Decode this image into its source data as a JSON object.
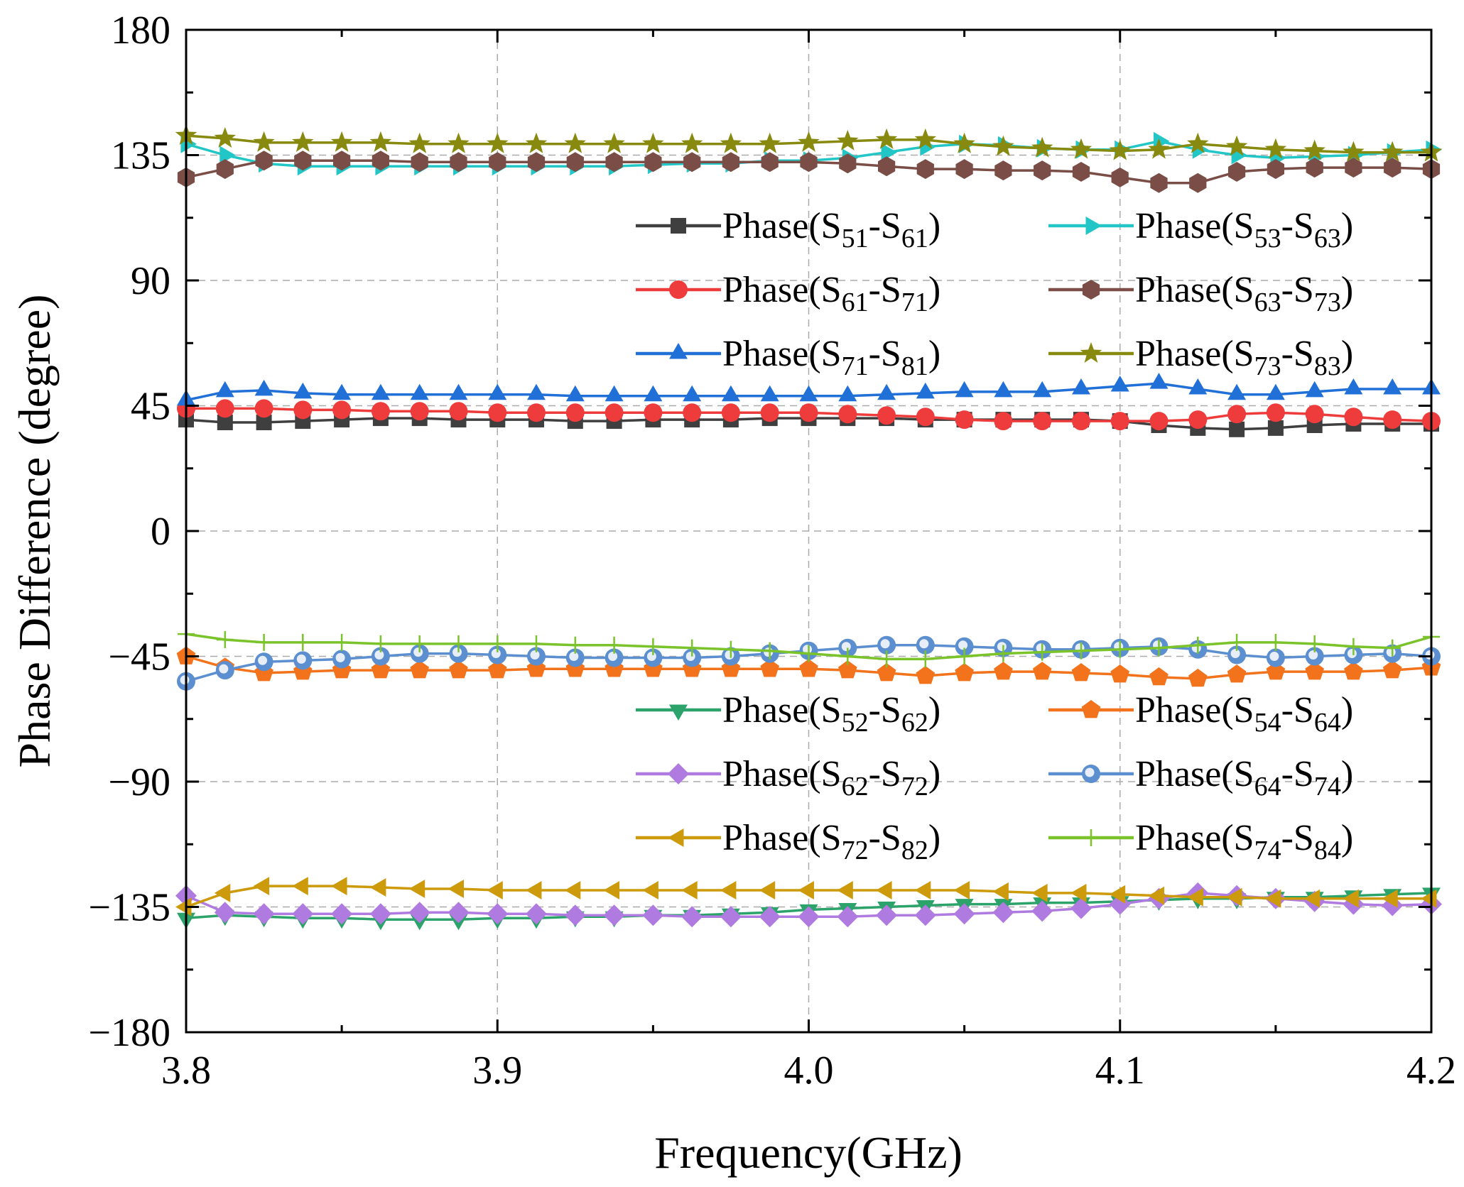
{
  "chart_data": {
    "type": "line",
    "title": "",
    "xlabel": "Frequency(GHz)",
    "ylabel": "Phase Difference (degree)",
    "xlim": [
      3.8,
      4.2
    ],
    "ylim": [
      -180,
      180
    ],
    "grid": true,
    "x_ticks": [
      {
        "value": 3.8,
        "label": "3.8"
      },
      {
        "value": 3.9,
        "label": "3.9"
      },
      {
        "value": 4.0,
        "label": "4.0"
      },
      {
        "value": 4.1,
        "label": "4.1"
      },
      {
        "value": 4.2,
        "label": "4.2"
      }
    ],
    "y_ticks": [
      {
        "value": 180,
        "label": "180"
      },
      {
        "value": 135,
        "label": "135"
      },
      {
        "value": 90,
        "label": "90"
      },
      {
        "value": 45,
        "label": "45"
      },
      {
        "value": 0,
        "label": "0"
      },
      {
        "value": -45,
        "label": "−45"
      },
      {
        "value": -90,
        "label": "−90"
      },
      {
        "value": -135,
        "label": "−135"
      },
      {
        "value": -180,
        "label": "−180"
      }
    ],
    "x": [
      3.8,
      3.8125,
      3.825,
      3.8375,
      3.85,
      3.8625,
      3.875,
      3.8875,
      3.9,
      3.9125,
      3.925,
      3.9375,
      3.95,
      3.9625,
      3.975,
      3.9875,
      4.0,
      4.0125,
      4.025,
      4.0375,
      4.05,
      4.0625,
      4.075,
      4.0875,
      4.1,
      4.1125,
      4.125,
      4.1375,
      4.15,
      4.1625,
      4.175,
      4.1875,
      4.2
    ],
    "legends": [
      {
        "position": "upper-right",
        "series": [
          0,
          5,
          1,
          6,
          2,
          7
        ]
      },
      {
        "position": "lower-right",
        "series": [
          3,
          8,
          4,
          9,
          10,
          11
        ]
      }
    ],
    "series": [
      {
        "name": "Phase(S51-S61)",
        "prefix": "Phase(S",
        "a": "51",
        "b": "61",
        "color": "#3f3f3f",
        "marker": "square",
        "values": [
          40,
          39,
          39,
          39.5,
          40,
          40.5,
          40.5,
          40,
          40,
          40,
          39.5,
          39.5,
          40,
          40,
          40,
          40.5,
          40.5,
          40.5,
          40.5,
          40,
          40,
          40,
          40,
          40,
          39.5,
          38,
          37,
          36.5,
          37,
          38,
          38.5,
          38.5,
          38.5
        ]
      },
      {
        "name": "Phase(S61-S71)",
        "prefix": "Phase(S",
        "a": "61",
        "b": "71",
        "color": "#ee3b3b",
        "marker": "circle",
        "values": [
          44,
          44,
          44,
          43.5,
          43.5,
          43,
          43,
          43,
          42.5,
          42.5,
          42.5,
          42.5,
          42.5,
          42.5,
          42.5,
          42.5,
          42.5,
          42,
          41.5,
          41,
          40,
          39.5,
          39.5,
          39.5,
          39.5,
          39.5,
          40,
          42,
          42.5,
          42,
          41,
          40,
          39.5
        ]
      },
      {
        "name": "Phase(S71-S81)",
        "prefix": "Phase(S",
        "a": "71",
        "b": "81",
        "color": "#2070d8",
        "marker": "triangle-up",
        "values": [
          47,
          50,
          50.5,
          49.5,
          49,
          49,
          49,
          49,
          49,
          49,
          48.5,
          48.5,
          48.5,
          48.5,
          48.5,
          48.5,
          48.5,
          48.5,
          49,
          49.5,
          50,
          50,
          50,
          51,
          52,
          53,
          51,
          49,
          49,
          50,
          51,
          51,
          51
        ]
      },
      {
        "name": "Phase(S52-S62)",
        "prefix": "Phase(S",
        "a": "52",
        "b": "62",
        "color": "#2ba36a",
        "marker": "triangle-down",
        "values": [
          -139,
          -138,
          -138.5,
          -139,
          -139,
          -139.5,
          -139.5,
          -139.5,
          -139,
          -139,
          -138.5,
          -138.5,
          -138,
          -138,
          -137.5,
          -137,
          -136,
          -135.5,
          -135,
          -134.5,
          -134,
          -134,
          -133.5,
          -133.5,
          -133,
          -132.5,
          -132,
          -132,
          -131.5,
          -131.5,
          -131,
          -130.5,
          -130
        ]
      },
      {
        "name": "Phase(S62-S72)",
        "prefix": "Phase(S",
        "a": "62",
        "b": "72",
        "color": "#b07be0",
        "marker": "diamond",
        "values": [
          -131,
          -137,
          -137.5,
          -137.5,
          -137.5,
          -137.5,
          -137,
          -137,
          -137.5,
          -137.5,
          -138,
          -138,
          -138,
          -138.5,
          -138.5,
          -138.5,
          -138.5,
          -138.5,
          -138,
          -138,
          -137.5,
          -137,
          -136.5,
          -135.5,
          -134,
          -132,
          -130,
          -131,
          -132,
          -133,
          -134,
          -134.5,
          -134
        ]
      },
      {
        "name": "Phase(S53-S63)",
        "prefix": "Phase(S",
        "a": "53",
        "b": "63",
        "color": "#22c6c6",
        "marker": "triangle-right",
        "values": [
          139,
          135,
          132,
          131,
          131,
          131,
          131,
          131,
          131,
          131,
          131,
          131,
          131.5,
          132,
          132,
          133,
          133,
          134,
          136,
          138,
          139,
          138.5,
          137.5,
          137,
          137,
          140,
          137,
          135,
          134,
          134.5,
          135,
          136,
          137
        ]
      },
      {
        "name": "Phase(S63-S73)",
        "prefix": "Phase(S",
        "a": "63",
        "b": "73",
        "color": "#7a4d46",
        "marker": "hexagon",
        "values": [
          127,
          130,
          133,
          133,
          133,
          133,
          132.5,
          132.5,
          132.5,
          132.5,
          132.5,
          132.5,
          132.5,
          132.5,
          132.5,
          132.5,
          132.5,
          132,
          131,
          130,
          130,
          129.5,
          129.5,
          129,
          127,
          125,
          125,
          129,
          130,
          130.5,
          130.5,
          130.5,
          130
        ]
      },
      {
        "name": "Phase(S73-S83)",
        "prefix": "Phase(S",
        "a": "73",
        "b": "83",
        "color": "#878a0e",
        "marker": "star",
        "values": [
          142,
          141,
          139.5,
          139.5,
          139.5,
          139.5,
          139,
          139,
          139,
          139,
          139,
          139,
          139,
          139,
          139,
          139,
          139.5,
          140,
          140.5,
          140.5,
          139,
          138,
          137.5,
          137,
          136.5,
          137,
          139,
          138,
          137,
          136.5,
          136,
          136,
          136
        ]
      },
      {
        "name": "Phase(S54-S64)",
        "prefix": "Phase(S",
        "a": "54",
        "b": "64",
        "color": "#f2731b",
        "marker": "pentagon",
        "values": [
          -45,
          -49,
          -51,
          -50.5,
          -50,
          -50,
          -50,
          -50,
          -50,
          -49.5,
          -49.5,
          -49.5,
          -49.5,
          -49.5,
          -49.5,
          -49.5,
          -49.5,
          -50,
          -51,
          -52,
          -51,
          -50.5,
          -50.5,
          -51,
          -51.5,
          -52.5,
          -53,
          -51.5,
          -50.5,
          -50.5,
          -50.5,
          -50,
          -49
        ]
      },
      {
        "name": "Phase(S64-S74)",
        "prefix": "Phase(S",
        "a": "64",
        "b": "74",
        "color": "#5b8fd0",
        "marker": "ball",
        "values": [
          -54,
          -50,
          -47,
          -46.5,
          -46,
          -45,
          -44,
          -44,
          -44.5,
          -45,
          -45.5,
          -45.5,
          -45.5,
          -45.5,
          -45,
          -44,
          -43,
          -42,
          -41,
          -41,
          -41.5,
          -42,
          -42.5,
          -42.5,
          -42,
          -41.5,
          -42.5,
          -44.5,
          -45.5,
          -45,
          -44.5,
          -44,
          -45
        ]
      },
      {
        "name": "Phase(S72-S82)",
        "prefix": "Phase(S",
        "a": "72",
        "b": "82",
        "color": "#cc9a0a",
        "marker": "triangle-left",
        "values": [
          -135,
          -130,
          -127.5,
          -127.5,
          -127.5,
          -128,
          -128.5,
          -128.5,
          -129,
          -129,
          -129,
          -129,
          -129,
          -129,
          -129,
          -129,
          -129,
          -129,
          -129,
          -129,
          -129,
          -129.5,
          -130,
          -130,
          -130.5,
          -131,
          -131.5,
          -131.5,
          -132,
          -132,
          -132,
          -132,
          -132
        ]
      },
      {
        "name": "Phase(S74-S84)",
        "prefix": "Phase(S",
        "a": "74",
        "b": "84",
        "color": "#7ac32a",
        "marker": "plus",
        "values": [
          -37,
          -39,
          -40,
          -40,
          -40,
          -40.5,
          -40.5,
          -40.5,
          -40.5,
          -40.5,
          -41,
          -41,
          -41.5,
          -42,
          -42.5,
          -43,
          -44,
          -45,
          -46,
          -46,
          -45,
          -44,
          -43.5,
          -43,
          -42.5,
          -42,
          -41,
          -40,
          -40,
          -40.5,
          -41.5,
          -42,
          -38
        ]
      }
    ]
  }
}
